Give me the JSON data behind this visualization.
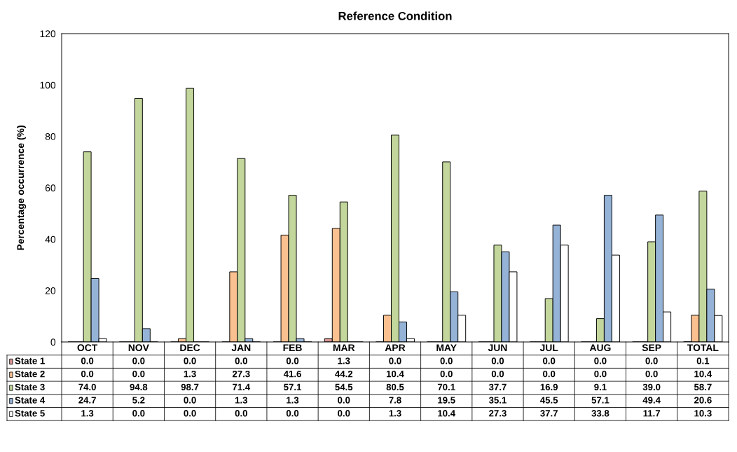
{
  "chart_data": {
    "type": "bar",
    "title": "Reference Condition",
    "ylabel": "Percentage occurrence (%)",
    "categories": [
      "OCT",
      "NOV",
      "DEC",
      "JAN",
      "FEB",
      "MAR",
      "APR",
      "MAY",
      "JUN",
      "JUL",
      "AUG",
      "SEP",
      "TOTAL"
    ],
    "ylim": [
      0,
      120
    ],
    "yticks": [
      0,
      20,
      40,
      60,
      80,
      100,
      120
    ],
    "grid": false,
    "legend": "bottom",
    "series": [
      {
        "name": "State 1",
        "color": "#d99694",
        "values": [
          0.0,
          0.0,
          0.0,
          0.0,
          0.0,
          1.3,
          0.0,
          0.0,
          0.0,
          0.0,
          0.0,
          0.0,
          0.1
        ],
        "value_labels": [
          "0.0",
          "0.0",
          "0.0",
          "0.0",
          "0.0",
          "1.3",
          "0.0",
          "0.0",
          "0.0",
          "0.0",
          "0.0",
          "0.0",
          "0.1"
        ]
      },
      {
        "name": "State 2",
        "color": "#fac090",
        "values": [
          0.0,
          0.0,
          1.3,
          27.3,
          41.6,
          44.2,
          10.4,
          0.0,
          0.0,
          0.0,
          0.0,
          0.0,
          10.4
        ],
        "value_labels": [
          "0.0",
          "0.0",
          "1.3",
          "27.3",
          "41.6",
          "44.2",
          "10.4",
          "0.0",
          "0.0",
          "0.0",
          "0.0",
          "0.0",
          "10.4"
        ]
      },
      {
        "name": "State 3",
        "color": "#c3d69b",
        "values": [
          74.0,
          94.8,
          98.7,
          71.4,
          57.1,
          54.5,
          80.5,
          70.1,
          37.7,
          16.9,
          9.1,
          39.0,
          58.7
        ],
        "value_labels": [
          "74.0",
          "94.8",
          "98.7",
          "71.4",
          "57.1",
          "54.5",
          "80.5",
          "70.1",
          "37.7",
          "16.9",
          "9.1",
          "39.0",
          "58.7"
        ]
      },
      {
        "name": "State 4",
        "color": "#95b3d7",
        "values": [
          24.7,
          5.2,
          0.0,
          1.3,
          1.3,
          0.0,
          7.8,
          19.5,
          35.1,
          45.5,
          57.1,
          49.4,
          20.6
        ],
        "value_labels": [
          "24.7",
          "5.2",
          "0.0",
          "1.3",
          "1.3",
          "0.0",
          "7.8",
          "19.5",
          "35.1",
          "45.5",
          "57.1",
          "49.4",
          "20.6"
        ]
      },
      {
        "name": "State 5",
        "color": "#ffffff",
        "values": [
          1.3,
          0.0,
          0.0,
          0.0,
          0.0,
          0.0,
          1.3,
          10.4,
          27.3,
          37.7,
          33.8,
          11.7,
          10.3
        ],
        "value_labels": [
          "1.3",
          "0.0",
          "0.0",
          "0.0",
          "0.0",
          "0.0",
          "1.3",
          "10.4",
          "27.3",
          "37.7",
          "33.8",
          "11.7",
          "10.3"
        ]
      }
    ]
  }
}
